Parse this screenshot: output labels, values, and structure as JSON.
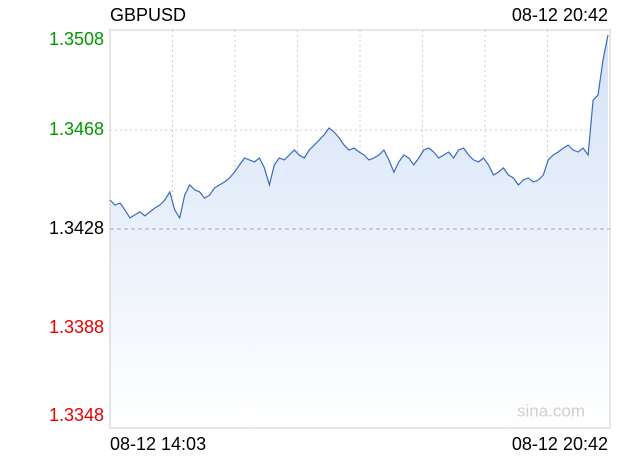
{
  "chart_data": {
    "type": "area",
    "title": "GBPUSD",
    "timestamp": "08-12 20:42",
    "watermark": "sina.com",
    "categories": [
      "08-12 14:03",
      null,
      null,
      null,
      null,
      null,
      null,
      null,
      null,
      null,
      null,
      null,
      null,
      null,
      null,
      null,
      null,
      null,
      null,
      null,
      null,
      null,
      null,
      null,
      null,
      null,
      null,
      null,
      null,
      null,
      null,
      null,
      null,
      null,
      null,
      null,
      null,
      null,
      null,
      null,
      null,
      null,
      null,
      null,
      null,
      null,
      null,
      null,
      null,
      null,
      null,
      null,
      null,
      null,
      null,
      null,
      null,
      null,
      null,
      null,
      null,
      null,
      null,
      null,
      null,
      null,
      null,
      null,
      null,
      null,
      null,
      null,
      null,
      null,
      null,
      null,
      null,
      null,
      null,
      null,
      null,
      null,
      null,
      null,
      null,
      null,
      null,
      null,
      null,
      null,
      null,
      null,
      null,
      null,
      null,
      null,
      null,
      null,
      null,
      null,
      "08-12 20:42"
    ],
    "values": [
      1.34397,
      1.34377,
      1.34385,
      1.34357,
      1.34325,
      1.34337,
      1.34349,
      1.34333,
      1.34349,
      1.34365,
      1.34377,
      1.34397,
      1.3443,
      1.34357,
      1.34325,
      1.34417,
      1.34458,
      1.34438,
      1.3443,
      1.34405,
      1.34417,
      1.34446,
      1.34458,
      1.3447,
      1.34486,
      1.3451,
      1.34539,
      1.34567,
      1.34559,
      1.34551,
      1.34567,
      1.34527,
      1.34458,
      1.34539,
      1.34567,
      1.34559,
      1.34579,
      1.34599,
      1.34579,
      1.34567,
      1.34599,
      1.34619,
      1.3464,
      1.3466,
      1.34688,
      1.34672,
      1.34648,
      1.34619,
      1.34599,
      1.34607,
      1.34591,
      1.34579,
      1.34559,
      1.34567,
      1.34579,
      1.34599,
      1.34559,
      1.3451,
      1.34551,
      1.34579,
      1.34567,
      1.34539,
      1.34567,
      1.34599,
      1.34607,
      1.34591,
      1.34567,
      1.34579,
      1.34591,
      1.34567,
      1.34599,
      1.34607,
      1.34579,
      1.34559,
      1.34551,
      1.34567,
      1.34539,
      1.34498,
      1.3451,
      1.34527,
      1.34498,
      1.34486,
      1.34458,
      1.34478,
      1.34486,
      1.3447,
      1.34478,
      1.34498,
      1.34559,
      1.34579,
      1.34591,
      1.34607,
      1.34619,
      1.34599,
      1.34591,
      1.34607,
      1.34579,
      1.34801,
      1.34821,
      1.34963,
      1.35064
    ],
    "color": "#3a6bbf",
    "fill_color": "#d4e2f7",
    "ylim": [
      1.3348,
      1.3508
    ],
    "yticks": [
      1.3348,
      1.3388,
      1.3428,
      1.3468,
      1.3508
    ],
    "base": 1.3428,
    "up_color": "#009900",
    "down_color": "#e60000",
    "grid": true
  }
}
